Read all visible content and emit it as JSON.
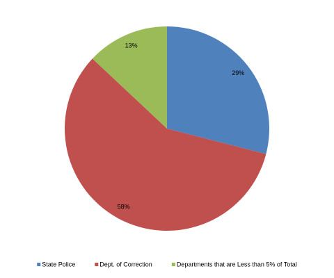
{
  "chart_data": {
    "type": "pie",
    "categories": [
      "State Police",
      "Dept. of Correction",
      "Departments that are Less than 5% of Total"
    ],
    "values": [
      29,
      58,
      13
    ],
    "value_labels": [
      "29%",
      "58%",
      "13%"
    ],
    "colors": [
      "#4f81bd",
      "#c0504d",
      "#9bbb59"
    ],
    "legend": "bottom"
  }
}
